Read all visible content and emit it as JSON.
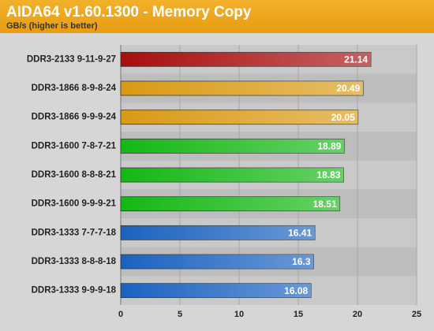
{
  "chart_data": {
    "type": "bar",
    "orientation": "horizontal",
    "title": "AIDA64 v1.60.1300 - Memory Copy",
    "subtitle": "GB/s (higher is better)",
    "categories": [
      "DDR3-2133 9-11-9-27",
      "DDR3-1866 8-9-8-24",
      "DDR3-1866 9-9-9-24",
      "DDR3-1600 7-8-7-21",
      "DDR3-1600 8-8-8-21",
      "DDR3-1600 9-9-9-21",
      "DDR3-1333 7-7-7-18",
      "DDR3-1333 8-8-8-18",
      "DDR3-1333 9-9-9-18"
    ],
    "values": [
      21.14,
      20.49,
      20.05,
      18.89,
      18.83,
      18.51,
      16.41,
      16.3,
      16.08
    ],
    "colors": [
      "#a80d0d",
      "#d99a14",
      "#d99a14",
      "#14b814",
      "#14b814",
      "#14b814",
      "#1a62c0",
      "#1a62c0",
      "#1a62c0"
    ],
    "xlim": [
      0,
      25
    ],
    "xticks": [
      0,
      5,
      10,
      15,
      20,
      25
    ],
    "grid": true
  }
}
